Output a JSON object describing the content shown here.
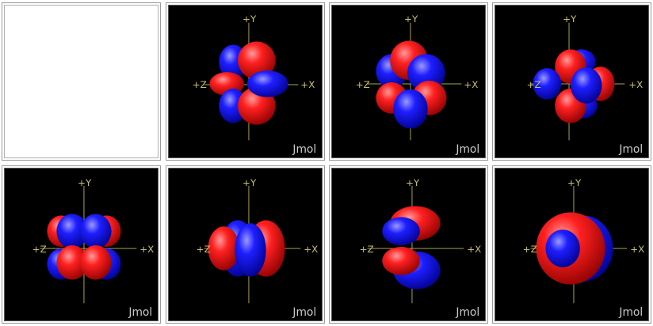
{
  "axes": {
    "y": "+Y",
    "z": "+Z",
    "x": "+X"
  },
  "watermark": "Jmol",
  "colors": {
    "positive_lobe": "#ff1a1a",
    "negative_lobe": "#1a1aff",
    "background": "#000000",
    "axis": "#a8a450"
  },
  "panels": [
    {
      "id": "blank"
    },
    {
      "id": "orbital-1"
    },
    {
      "id": "orbital-2"
    },
    {
      "id": "orbital-3"
    },
    {
      "id": "orbital-4"
    },
    {
      "id": "orbital-5"
    },
    {
      "id": "orbital-6"
    },
    {
      "id": "orbital-7"
    }
  ]
}
